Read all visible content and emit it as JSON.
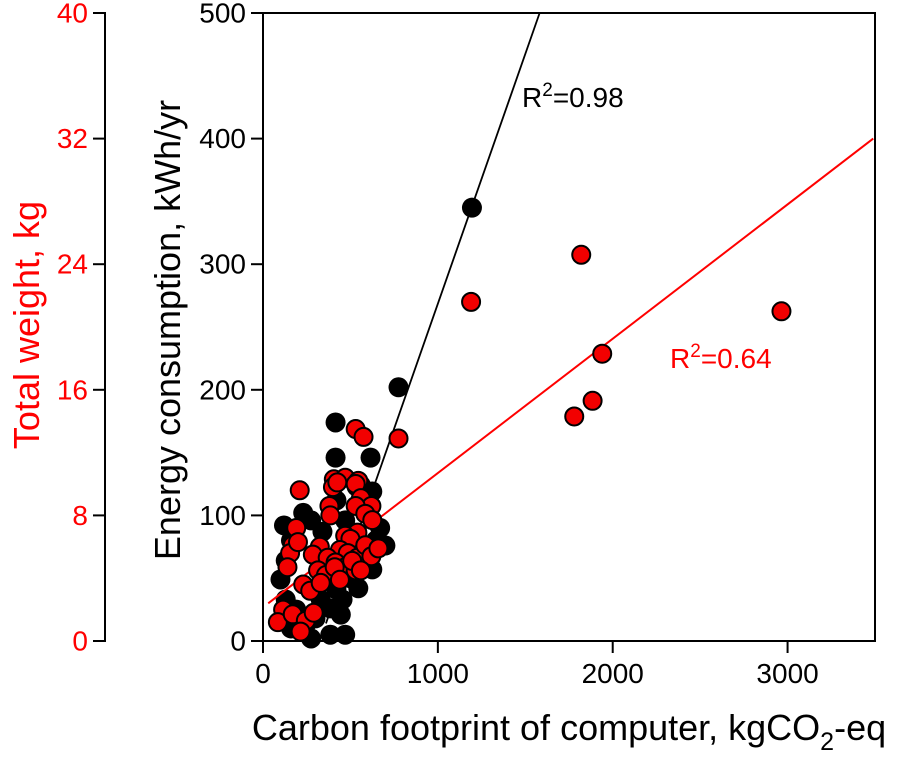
{
  "figure": {
    "background": "#ffffff",
    "x_axis": {
      "title_pre": "Carbon footprint of computer, kgCO",
      "title_sub": "2",
      "title_post": "-eq",
      "tick_labels": [
        "0",
        "1000",
        "2000",
        "3000"
      ],
      "ticks": [
        0,
        1000,
        2000,
        3000
      ],
      "range": [
        0,
        3500
      ]
    },
    "y_axis_energy": {
      "title": "Energy consumption, kWh/yr",
      "tick_labels": [
        "0",
        "100",
        "200",
        "300",
        "400",
        "500"
      ],
      "ticks": [
        0,
        100,
        200,
        300,
        400,
        500
      ],
      "range": [
        0,
        500
      ],
      "color": "#000000"
    },
    "y_axis_weight": {
      "title": "Total weight, kg",
      "tick_labels": [
        "0",
        "8",
        "16",
        "24",
        "32",
        "40"
      ],
      "ticks": [
        0,
        8,
        16,
        24,
        32,
        40
      ],
      "range": [
        0,
        40
      ],
      "color": "#ff0000"
    },
    "annotations": {
      "black_r2": {
        "base": "R",
        "sup": "2",
        "rest": "=0.98",
        "color": "#000000"
      },
      "red_r2": {
        "base": "R",
        "sup": "2",
        "rest": "=0.64",
        "color": "#ff0000"
      }
    }
  },
  "chart_data": {
    "type": "scatter",
    "title": "",
    "xlabel": "Carbon footprint of computer, kgCO2-eq",
    "x_range": [
      0,
      3500
    ],
    "grid": false,
    "legend": "none",
    "series": [
      {
        "name": "Energy consumption, kWh/yr",
        "axis": "inner-left",
        "color": "#000000",
        "marker": "filled-circle",
        "marker_radius_px": 10,
        "y_range": [
          0,
          500
        ],
        "trend": {
          "from": [
            360,
            14
          ],
          "to": [
            1582,
            500
          ],
          "r_squared": "0.98",
          "color": "#000000"
        },
        "points": [
          [
            1195,
            345
          ],
          [
            775,
            202
          ],
          [
            415,
            174
          ],
          [
            415,
            146
          ],
          [
            615,
            146
          ],
          [
            560,
            124
          ],
          [
            230,
            102
          ],
          [
            470,
            96
          ],
          [
            535,
            123
          ],
          [
            625,
            119
          ],
          [
            500,
            58
          ],
          [
            130,
            33
          ],
          [
            190,
            25
          ],
          [
            245,
            13
          ],
          [
            300,
            18
          ],
          [
            330,
            33
          ],
          [
            385,
            26
          ],
          [
            445,
            21
          ],
          [
            470,
            5
          ],
          [
            385,
            5
          ],
          [
            275,
            2
          ],
          [
            160,
            10
          ],
          [
            100,
            49
          ],
          [
            130,
            64
          ],
          [
            160,
            80
          ],
          [
            120,
            92
          ],
          [
            420,
            41
          ],
          [
            500,
            50
          ],
          [
            560,
            61
          ],
          [
            605,
            71
          ],
          [
            645,
            80
          ],
          [
            670,
            90
          ],
          [
            700,
            76
          ],
          [
            625,
            57
          ],
          [
            545,
            42
          ],
          [
            455,
            33
          ],
          [
            510,
            76
          ],
          [
            385,
            64
          ],
          [
            340,
            87
          ],
          [
            275,
            96
          ],
          [
            420,
            112
          ]
        ]
      },
      {
        "name": "Total weight, kg",
        "axis": "outer-left",
        "color": "#f20000",
        "edge_color": "#000000",
        "marker": "filled-circle-black-edge",
        "marker_radius_px": 9,
        "y_range": [
          0,
          40
        ],
        "trend": {
          "from": [
            30,
            2.4
          ],
          "to": [
            3490,
            32.0
          ],
          "r_squared": "0.64",
          "color": "#ff0000"
        },
        "points": [
          [
            1820,
            24.6
          ],
          [
            1190,
            21.6
          ],
          [
            2965,
            21.0
          ],
          [
            1940,
            18.3
          ],
          [
            1885,
            15.3
          ],
          [
            1780,
            14.3
          ],
          [
            775,
            12.9
          ],
          [
            530,
            13.5
          ],
          [
            575,
            13.0
          ],
          [
            210,
            9.6
          ],
          [
            405,
            10.3
          ],
          [
            470,
            10.4
          ],
          [
            545,
            10.2
          ],
          [
            400,
            9.8
          ],
          [
            425,
            10.1
          ],
          [
            530,
            10.0
          ],
          [
            560,
            9.1
          ],
          [
            620,
            8.6
          ],
          [
            380,
            8.6
          ],
          [
            385,
            8.0
          ],
          [
            530,
            8.6
          ],
          [
            585,
            8.1
          ],
          [
            625,
            7.7
          ],
          [
            190,
            7.2
          ],
          [
            170,
            6.1
          ],
          [
            155,
            5.6
          ],
          [
            140,
            4.7
          ],
          [
            200,
            6.3
          ],
          [
            540,
            6.9
          ],
          [
            470,
            6.7
          ],
          [
            500,
            6.5
          ],
          [
            440,
            5.8
          ],
          [
            485,
            5.6
          ],
          [
            540,
            5.3
          ],
          [
            585,
            6.1
          ],
          [
            620,
            5.4
          ],
          [
            660,
            5.9
          ],
          [
            325,
            6.0
          ],
          [
            285,
            5.5
          ],
          [
            370,
            5.3
          ],
          [
            415,
            5.0
          ],
          [
            470,
            4.7
          ],
          [
            530,
            4.5
          ],
          [
            510,
            5.1
          ],
          [
            560,
            4.5
          ],
          [
            380,
            4.3
          ],
          [
            315,
            4.5
          ],
          [
            360,
            4.2
          ],
          [
            410,
            4.7
          ],
          [
            440,
            3.9
          ],
          [
            230,
            3.6
          ],
          [
            270,
            3.2
          ],
          [
            330,
            3.7
          ],
          [
            115,
            2.0
          ],
          [
            85,
            1.2
          ],
          [
            170,
            1.7
          ],
          [
            245,
            1.3
          ],
          [
            290,
            1.8
          ],
          [
            215,
            0.6
          ]
        ]
      }
    ]
  }
}
